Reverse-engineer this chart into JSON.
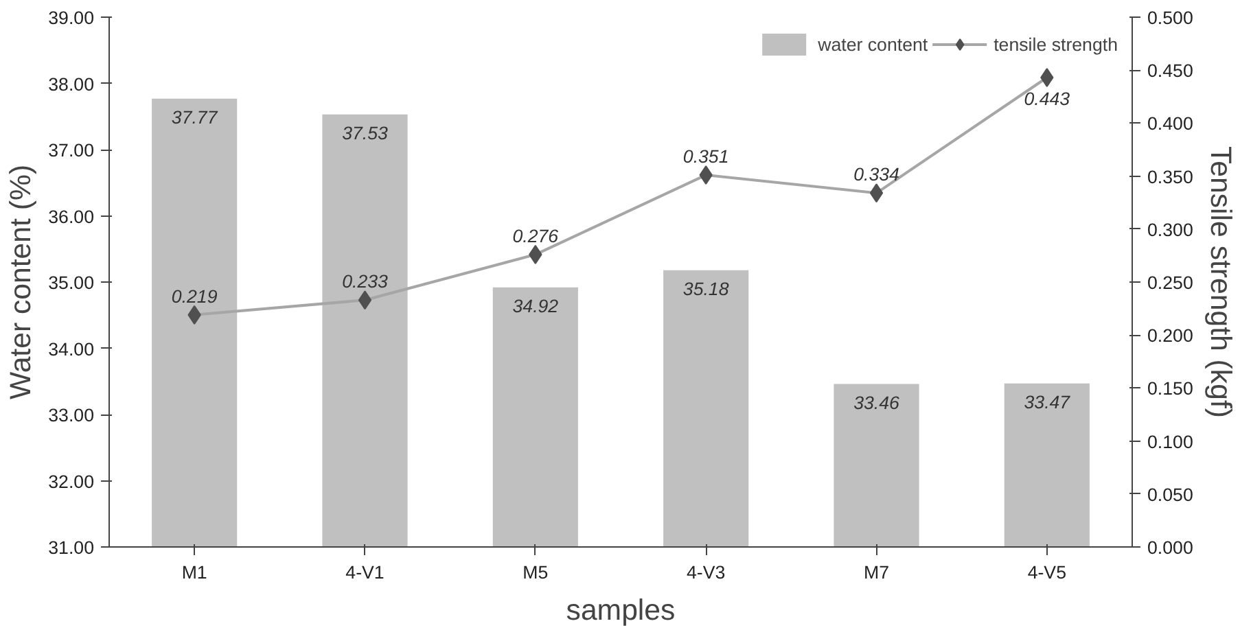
{
  "chart_data": {
    "type": "bar",
    "xlabel": "samples",
    "ylabel": "Water content (%)",
    "y2label": "Tensile strength (kgf)",
    "categories": [
      "M1",
      "4-V1",
      "M5",
      "4-V3",
      "M7",
      "4-V5"
    ],
    "series": [
      {
        "name": "water content",
        "color": "#c0c0c0",
        "values": [
          37.77,
          37.53,
          34.92,
          35.18,
          33.46,
          33.47
        ]
      },
      {
        "name": "tensile strength",
        "type": "line",
        "axis": "y2",
        "color": "#a6a6a6",
        "marker": "diamond",
        "values": [
          0.219,
          0.233,
          0.276,
          0.351,
          0.334,
          0.443
        ]
      }
    ],
    "ylim": [
      31,
      39
    ],
    "yticks": [
      {
        "value": 31,
        "label": "31.00"
      },
      {
        "value": 32,
        "label": "32.00"
      },
      {
        "value": 33,
        "label": "33.00"
      },
      {
        "value": 34,
        "label": "34.00"
      },
      {
        "value": 35,
        "label": "35.00"
      },
      {
        "value": 36,
        "label": "36.00"
      },
      {
        "value": 37,
        "label": "37.00"
      },
      {
        "value": 38,
        "label": "38.00"
      },
      {
        "value": 39,
        "label": "39.00"
      }
    ],
    "y2lim": [
      0,
      0.5
    ],
    "y2ticks": [
      {
        "value": 0,
        "label": "0.000"
      },
      {
        "value": 0.05,
        "label": "0.050"
      },
      {
        "value": 0.1,
        "label": "0.100"
      },
      {
        "value": 0.15,
        "label": "0.150"
      },
      {
        "value": 0.2,
        "label": "0.200"
      },
      {
        "value": 0.25,
        "label": "0.250"
      },
      {
        "value": 0.3,
        "label": "0.300"
      },
      {
        "value": 0.35,
        "label": "0.350"
      },
      {
        "value": 0.4,
        "label": "0.400"
      },
      {
        "value": 0.45,
        "label": "0.450"
      },
      {
        "value": 0.5,
        "label": "0.500"
      }
    ],
    "data_labels": true,
    "legend": "top right",
    "grid": false
  }
}
